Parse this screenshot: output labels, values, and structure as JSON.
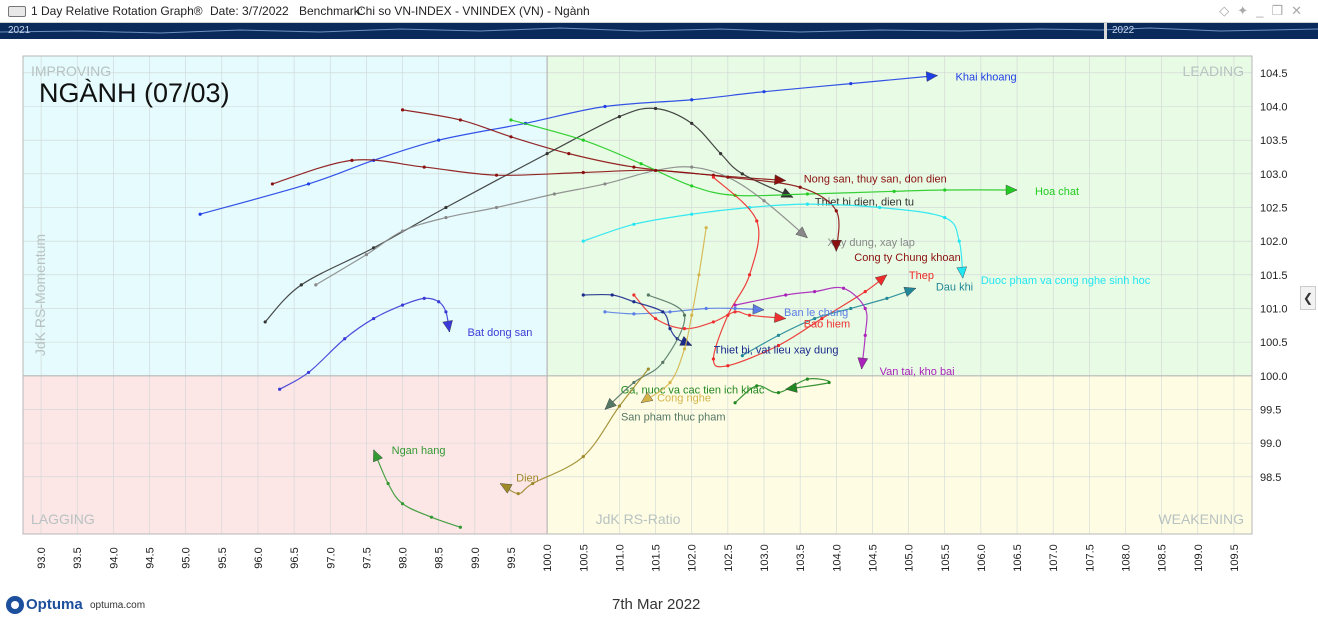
{
  "window": {
    "title": "1 Day Relative Rotation Graph®",
    "date_label": "Date: 3/7/2022",
    "benchmark_label": "Benchmark:",
    "benchmark_value": "Chi so VN-INDEX - VNINDEX (VN) - Ngành"
  },
  "timeline": {
    "start_year": "2021",
    "end_year": "2022"
  },
  "chart_data": {
    "type": "scatter",
    "title": "NGÀNH (07/03)",
    "xlabel": "JdK RS-Ratio",
    "ylabel": "JdK RS-Momentum",
    "xlim": [
      92.75,
      109.75
    ],
    "ylim": [
      97.65,
      104.75
    ],
    "center": [
      100.0,
      100.0
    ],
    "x_ticks": [
      "93.0",
      "93.5",
      "94.0",
      "94.5",
      "95.0",
      "95.5",
      "96.0",
      "96.5",
      "97.0",
      "97.5",
      "98.0",
      "98.5",
      "99.0",
      "99.5",
      "100.0",
      "100.5",
      "101.0",
      "101.5",
      "102.0",
      "102.5",
      "103.0",
      "103.5",
      "104.0",
      "104.5",
      "105.0",
      "105.5",
      "106.0",
      "106.5",
      "107.0",
      "107.5",
      "108.0",
      "108.5",
      "109.0",
      "109.5"
    ],
    "y_ticks": [
      "98.5",
      "99.0",
      "99.5",
      "100.0",
      "100.5",
      "101.0",
      "101.5",
      "102.0",
      "102.5",
      "103.0",
      "103.5",
      "104.0",
      "104.5"
    ],
    "quadrants": {
      "improving": {
        "label": "IMPROVING",
        "color": "#e5fbfd"
      },
      "leading": {
        "label": "LEADING",
        "color": "#e8fbe4"
      },
      "lagging": {
        "label": "LAGGING",
        "color": "#fde6e6"
      },
      "weakening": {
        "label": "WEAKENING",
        "color": "#fefde4"
      }
    },
    "series": [
      {
        "name": "Khai khoang",
        "color": "#1f3fe6",
        "points": [
          [
            95.2,
            102.4
          ],
          [
            96.7,
            102.85
          ],
          [
            97.6,
            103.2
          ],
          [
            98.5,
            103.5
          ],
          [
            99.7,
            103.75
          ],
          [
            100.8,
            104.0
          ],
          [
            102.0,
            104.1
          ],
          [
            103.0,
            104.22
          ],
          [
            104.2,
            104.34
          ],
          [
            105.4,
            104.46
          ]
        ]
      },
      {
        "name": "Nong san, thuy san, don dien",
        "color": "#8b1010",
        "points": [
          [
            98.0,
            103.95
          ],
          [
            98.8,
            103.8
          ],
          [
            99.5,
            103.55
          ],
          [
            100.3,
            103.3
          ],
          [
            101.2,
            103.1
          ],
          [
            102.3,
            102.98
          ],
          [
            103.3,
            102.9
          ]
        ]
      },
      {
        "name": "Thiet bi dien, dien tu",
        "color": "#333333",
        "points": [
          [
            96.1,
            100.8
          ],
          [
            96.6,
            101.35
          ],
          [
            97.6,
            101.9
          ],
          [
            98.6,
            102.5
          ],
          [
            100.0,
            103.3
          ],
          [
            101.0,
            103.85
          ],
          [
            101.5,
            103.97
          ],
          [
            102.0,
            103.75
          ],
          [
            102.4,
            103.3
          ],
          [
            102.7,
            103.0
          ],
          [
            103.4,
            102.65
          ]
        ]
      },
      {
        "name": "Hoa chat",
        "color": "#22cc22",
        "points": [
          [
            99.5,
            103.8
          ],
          [
            100.5,
            103.5
          ],
          [
            101.3,
            103.15
          ],
          [
            102.0,
            102.82
          ],
          [
            102.6,
            102.68
          ],
          [
            103.6,
            102.7
          ],
          [
            104.8,
            102.74
          ],
          [
            105.5,
            102.76
          ],
          [
            106.5,
            102.76
          ]
        ]
      },
      {
        "name": "Xay dung, xay lap",
        "color": "#888888",
        "points": [
          [
            96.8,
            101.35
          ],
          [
            97.5,
            101.8
          ],
          [
            98.0,
            102.15
          ],
          [
            98.6,
            102.35
          ],
          [
            99.3,
            102.5
          ],
          [
            100.1,
            102.7
          ],
          [
            100.8,
            102.85
          ],
          [
            101.5,
            103.05
          ],
          [
            102.0,
            103.1
          ],
          [
            102.5,
            102.95
          ],
          [
            103.0,
            102.6
          ],
          [
            103.6,
            102.05
          ]
        ]
      },
      {
        "name": "Cong ty Chung khoan",
        "color": "#8b1010",
        "points": [
          [
            96.2,
            102.85
          ],
          [
            97.3,
            103.2
          ],
          [
            98.3,
            103.1
          ],
          [
            99.3,
            102.98
          ],
          [
            100.5,
            103.02
          ],
          [
            101.5,
            103.05
          ],
          [
            102.5,
            102.95
          ],
          [
            103.5,
            102.8
          ],
          [
            104.0,
            102.45
          ],
          [
            104.0,
            101.85
          ]
        ]
      },
      {
        "name": "Duoc pham va cong nghe sinh hoc",
        "color": "#22e6f2",
        "points": [
          [
            100.5,
            102.0
          ],
          [
            101.2,
            102.25
          ],
          [
            102.0,
            102.4
          ],
          [
            102.8,
            102.5
          ],
          [
            103.6,
            102.55
          ],
          [
            104.6,
            102.5
          ],
          [
            105.5,
            102.35
          ],
          [
            105.7,
            102.0
          ],
          [
            105.75,
            101.45
          ]
        ]
      },
      {
        "name": "Thep",
        "color": "#ee2a2a",
        "points": [
          [
            102.3,
            102.95
          ],
          [
            102.9,
            102.3
          ],
          [
            102.8,
            101.5
          ],
          [
            102.5,
            100.9
          ],
          [
            102.3,
            100.25
          ],
          [
            102.5,
            100.15
          ],
          [
            103.2,
            100.45
          ],
          [
            103.8,
            100.85
          ],
          [
            104.4,
            101.25
          ],
          [
            104.7,
            101.5
          ]
        ]
      },
      {
        "name": "Dau khi",
        "color": "#228899",
        "points": [
          [
            102.7,
            100.3
          ],
          [
            103.2,
            100.6
          ],
          [
            103.7,
            100.85
          ],
          [
            104.2,
            101.0
          ],
          [
            104.7,
            101.15
          ],
          [
            105.1,
            101.3
          ]
        ]
      },
      {
        "name": "Bat dong san",
        "color": "#3a3ad8",
        "points": [
          [
            96.3,
            99.8
          ],
          [
            96.7,
            100.05
          ],
          [
            97.2,
            100.55
          ],
          [
            97.6,
            100.85
          ],
          [
            98.0,
            101.05
          ],
          [
            98.3,
            101.15
          ],
          [
            98.5,
            101.1
          ],
          [
            98.6,
            100.95
          ],
          [
            98.65,
            100.65
          ]
        ]
      },
      {
        "name": "Ban le chung",
        "color": "#5a7ee6",
        "points": [
          [
            100.8,
            100.95
          ],
          [
            101.2,
            100.92
          ],
          [
            101.7,
            100.95
          ],
          [
            102.2,
            101.0
          ],
          [
            102.6,
            101.0
          ],
          [
            103.0,
            100.98
          ]
        ]
      },
      {
        "name": "Bao hiem",
        "color": "#ee3030",
        "points": [
          [
            101.2,
            101.2
          ],
          [
            101.5,
            100.85
          ],
          [
            101.9,
            100.7
          ],
          [
            102.3,
            100.8
          ],
          [
            102.6,
            100.95
          ],
          [
            102.8,
            100.9
          ],
          [
            103.3,
            100.85
          ]
        ]
      },
      {
        "name": "Thiet bi, vat lieu xay dung",
        "color": "#1a2a8c",
        "points": [
          [
            100.5,
            101.2
          ],
          [
            100.9,
            101.2
          ],
          [
            101.2,
            101.1
          ],
          [
            101.6,
            100.95
          ],
          [
            101.7,
            100.7
          ],
          [
            101.8,
            100.55
          ],
          [
            102.0,
            100.45
          ]
        ]
      },
      {
        "name": "Van tai, kho bai",
        "color": "#aa22bb",
        "points": [
          [
            102.6,
            101.05
          ],
          [
            103.3,
            101.2
          ],
          [
            103.7,
            101.25
          ],
          [
            104.1,
            101.3
          ],
          [
            104.4,
            101.0
          ],
          [
            104.4,
            100.6
          ],
          [
            104.35,
            100.1
          ]
        ]
      },
      {
        "name": "Ga, nuoc va cac tien ich khac",
        "color": "#228822",
        "points": [
          [
            102.6,
            99.6
          ],
          [
            102.9,
            99.85
          ],
          [
            103.2,
            99.75
          ],
          [
            103.6,
            99.95
          ],
          [
            103.9,
            99.9
          ],
          [
            103.3,
            99.8
          ]
        ]
      },
      {
        "name": "Cong nghe",
        "color": "#d4b44a",
        "points": [
          [
            102.2,
            102.2
          ],
          [
            102.1,
            101.5
          ],
          [
            102.0,
            100.9
          ],
          [
            101.9,
            100.4
          ],
          [
            101.7,
            99.9
          ],
          [
            101.3,
            99.6
          ]
        ]
      },
      {
        "name": "San pham thuc pham",
        "color": "#557766",
        "points": [
          [
            101.4,
            101.2
          ],
          [
            101.9,
            100.9
          ],
          [
            101.6,
            100.2
          ],
          [
            101.2,
            99.9
          ],
          [
            100.8,
            99.5
          ]
        ]
      },
      {
        "name": "Ngan hang",
        "color": "#339933",
        "points": [
          [
            98.8,
            97.75
          ],
          [
            98.4,
            97.9
          ],
          [
            98.0,
            98.1
          ],
          [
            97.8,
            98.4
          ],
          [
            97.6,
            98.9
          ]
        ]
      },
      {
        "name": "Dien",
        "color": "#9e8a2a",
        "points": [
          [
            101.4,
            100.1
          ],
          [
            101.0,
            99.55
          ],
          [
            100.5,
            98.8
          ],
          [
            99.8,
            98.4
          ],
          [
            99.6,
            98.25
          ],
          [
            99.35,
            98.4
          ]
        ]
      }
    ]
  },
  "footer": {
    "brand": "Optuma",
    "url": "optuma.com",
    "date": "7th Mar 2022"
  }
}
